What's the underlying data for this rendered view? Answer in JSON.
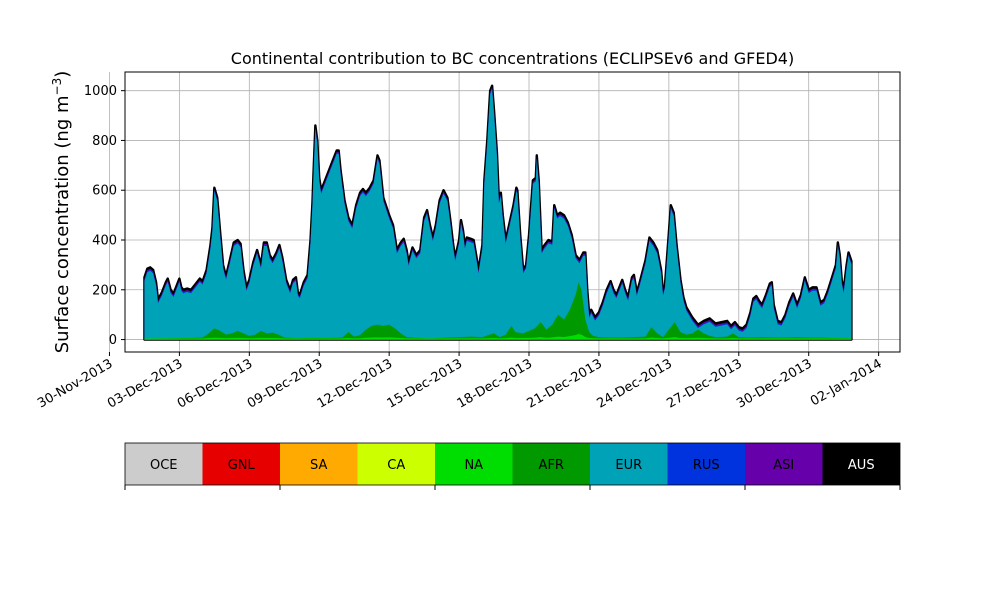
{
  "chart_data": {
    "type": "area",
    "stacked": true,
    "title": "Continental contribution to BC concentrations (ECLIPSEv6 and GFED4)",
    "ylabel": "Surface concentration (ng m",
    "ylabel_superscript": "−3",
    "ylabel_close": ")",
    "ylim": [
      -50,
      1075
    ],
    "xlim": [
      "2013-11-30T16:00",
      "2014-01-02T22:00"
    ],
    "y_ticks": [
      0,
      200,
      400,
      600,
      800,
      1000
    ],
    "x_ticks": [
      "2013-11-30",
      "2013-12-03",
      "2013-12-06",
      "2013-12-09",
      "2013-12-12",
      "2013-12-15",
      "2013-12-18",
      "2013-12-21",
      "2013-12-24",
      "2013-12-27",
      "2013-12-30",
      "2014-01-02"
    ],
    "x_tick_labels": [
      "30-Nov-2013",
      "03-Dec-2013",
      "06-Dec-2013",
      "09-Dec-2013",
      "12-Dec-2013",
      "15-Dec-2013",
      "18-Dec-2013",
      "21-Dec-2013",
      "24-Dec-2013",
      "27-Dec-2013",
      "30-Dec-2013",
      "02-Jan-2014"
    ],
    "grid": true,
    "series_order": [
      "OCE",
      "GNL",
      "SA",
      "CA",
      "NA",
      "AFR",
      "EUR",
      "RUS",
      "ASI",
      "AUS"
    ],
    "colors": {
      "OCE": "#cccccc",
      "GNL": "#e60000",
      "SA": "#ffaa00",
      "CA": "#ccff00",
      "NA": "#00dd00",
      "AFR": "#009900",
      "EUR": "#00a2b8",
      "RUS": "#0033dd",
      "ASI": "#6600aa",
      "AUS": "#000000"
    },
    "total_points": [
      [
        "2013-12-01T12:00",
        250
      ],
      [
        "2013-12-01T15:00",
        285
      ],
      [
        "2013-12-01T18:00",
        290
      ],
      [
        "2013-12-01T21:00",
        280
      ],
      [
        "2013-12-02T00:00",
        230
      ],
      [
        "2013-12-02T02:00",
        160
      ],
      [
        "2013-12-02T06:00",
        190
      ],
      [
        "2013-12-02T10:00",
        230
      ],
      [
        "2013-12-02T12:00",
        245
      ],
      [
        "2013-12-02T15:00",
        200
      ],
      [
        "2013-12-02T18:00",
        185
      ],
      [
        "2013-12-02T21:00",
        215
      ],
      [
        "2013-12-03T00:00",
        245
      ],
      [
        "2013-12-03T02:00",
        210
      ],
      [
        "2013-12-03T04:00",
        200
      ],
      [
        "2013-12-03T08:00",
        205
      ],
      [
        "2013-12-03T12:00",
        200
      ],
      [
        "2013-12-03T18:00",
        230
      ],
      [
        "2013-12-03T21:00",
        245
      ],
      [
        "2013-12-04T00:00",
        235
      ],
      [
        "2013-12-04T04:00",
        280
      ],
      [
        "2013-12-04T08:00",
        380
      ],
      [
        "2013-12-04T10:00",
        450
      ],
      [
        "2013-12-04T12:00",
        610
      ],
      [
        "2013-12-04T15:00",
        570
      ],
      [
        "2013-12-04T18:00",
        430
      ],
      [
        "2013-12-04T21:00",
        300
      ],
      [
        "2013-12-05T00:00",
        255
      ],
      [
        "2013-12-05T04:00",
        320
      ],
      [
        "2013-12-05T08:00",
        390
      ],
      [
        "2013-12-05T12:00",
        400
      ],
      [
        "2013-12-05T15:00",
        385
      ],
      [
        "2013-12-05T18:00",
        280
      ],
      [
        "2013-12-05T21:00",
        210
      ],
      [
        "2013-12-06T00:00",
        240
      ],
      [
        "2013-12-06T04:00",
        310
      ],
      [
        "2013-12-06T08:00",
        360
      ],
      [
        "2013-12-06T12:00",
        300
      ],
      [
        "2013-12-06T15:00",
        390
      ],
      [
        "2013-12-06T18:00",
        390
      ],
      [
        "2013-12-06T21:00",
        340
      ],
      [
        "2013-12-07T00:00",
        320
      ],
      [
        "2013-12-07T04:00",
        350
      ],
      [
        "2013-12-07T07:00",
        380
      ],
      [
        "2013-12-07T10:00",
        330
      ],
      [
        "2013-12-07T14:00",
        240
      ],
      [
        "2013-12-07T18:00",
        200
      ],
      [
        "2013-12-07T21:00",
        240
      ],
      [
        "2013-12-08T00:00",
        250
      ],
      [
        "2013-12-08T02:00",
        190
      ],
      [
        "2013-12-08T04:00",
        180
      ],
      [
        "2013-12-08T08:00",
        230
      ],
      [
        "2013-12-08T12:00",
        260
      ],
      [
        "2013-12-08T15:00",
        400
      ],
      [
        "2013-12-08T17:00",
        550
      ],
      [
        "2013-12-08T18:00",
        660
      ],
      [
        "2013-12-08T20:00",
        860
      ],
      [
        "2013-12-08T22:00",
        800
      ],
      [
        "2013-12-09T00:00",
        650
      ],
      [
        "2013-12-09T02:00",
        600
      ],
      [
        "2013-12-09T06:00",
        640
      ],
      [
        "2013-12-09T10:00",
        680
      ],
      [
        "2013-12-09T14:00",
        720
      ],
      [
        "2013-12-09T18:00",
        760
      ],
      [
        "2013-12-09T20:00",
        760
      ],
      [
        "2013-12-09T22:00",
        680
      ],
      [
        "2013-12-10T02:00",
        560
      ],
      [
        "2013-12-10T06:00",
        490
      ],
      [
        "2013-12-10T10:00",
        460
      ],
      [
        "2013-12-10T14:00",
        540
      ],
      [
        "2013-12-10T18:00",
        590
      ],
      [
        "2013-12-10T21:00",
        605
      ],
      [
        "2013-12-11T00:00",
        590
      ],
      [
        "2013-12-11T04:00",
        610
      ],
      [
        "2013-12-11T08:00",
        640
      ],
      [
        "2013-12-11T12:00",
        740
      ],
      [
        "2013-12-11T14:00",
        720
      ],
      [
        "2013-12-11T18:00",
        570
      ],
      [
        "2013-12-12T00:00",
        500
      ],
      [
        "2013-12-12T04:00",
        460
      ],
      [
        "2013-12-12T08:00",
        360
      ],
      [
        "2013-12-12T12:00",
        390
      ],
      [
        "2013-12-12T15:00",
        405
      ],
      [
        "2013-12-12T18:00",
        360
      ],
      [
        "2013-12-12T20:00",
        310
      ],
      [
        "2013-12-13T00:00",
        370
      ],
      [
        "2013-12-13T04:00",
        340
      ],
      [
        "2013-12-13T08:00",
        360
      ],
      [
        "2013-12-13T12:00",
        490
      ],
      [
        "2013-12-13T15:00",
        520
      ],
      [
        "2013-12-13T18:00",
        460
      ],
      [
        "2013-12-13T21:00",
        410
      ],
      [
        "2013-12-14T00:00",
        460
      ],
      [
        "2013-12-14T04:00",
        560
      ],
      [
        "2013-12-14T08:00",
        600
      ],
      [
        "2013-12-14T12:00",
        570
      ],
      [
        "2013-12-14T15:00",
        480
      ],
      [
        "2013-12-14T18:00",
        380
      ],
      [
        "2013-12-14T20:00",
        330
      ],
      [
        "2013-12-15T00:00",
        400
      ],
      [
        "2013-12-15T02:00",
        480
      ],
      [
        "2013-12-15T04:00",
        440
      ],
      [
        "2013-12-15T06:00",
        380
      ],
      [
        "2013-12-15T08:00",
        410
      ],
      [
        "2013-12-15T12:00",
        405
      ],
      [
        "2013-12-15T15:00",
        400
      ],
      [
        "2013-12-15T18:00",
        330
      ],
      [
        "2013-12-15T20:00",
        280
      ],
      [
        "2013-12-16T00:00",
        380
      ],
      [
        "2013-12-16T02:00",
        640
      ],
      [
        "2013-12-16T05:00",
        800
      ],
      [
        "2013-12-16T08:00",
        1000
      ],
      [
        "2013-12-16T10:00",
        1020
      ],
      [
        "2013-12-16T12:00",
        920
      ],
      [
        "2013-12-16T15:00",
        750
      ],
      [
        "2013-12-16T17:00",
        560
      ],
      [
        "2013-12-16T19:00",
        590
      ],
      [
        "2013-12-16T21:00",
        500
      ],
      [
        "2013-12-17T00:00",
        400
      ],
      [
        "2013-12-17T04:00",
        470
      ],
      [
        "2013-12-17T08:00",
        540
      ],
      [
        "2013-12-17T11:00",
        610
      ],
      [
        "2013-12-17T12:00",
        600
      ],
      [
        "2013-12-17T15:00",
        420
      ],
      [
        "2013-12-17T18:00",
        280
      ],
      [
        "2013-12-17T21:00",
        300
      ],
      [
        "2013-12-18T00:00",
        420
      ],
      [
        "2013-12-18T04:00",
        640
      ],
      [
        "2013-12-18T07:00",
        650
      ],
      [
        "2013-12-18T08:00",
        740
      ],
      [
        "2013-12-18T10:00",
        640
      ],
      [
        "2013-12-18T13:00",
        360
      ],
      [
        "2013-12-18T16:00",
        380
      ],
      [
        "2013-12-18T20:00",
        400
      ],
      [
        "2013-12-19T00:00",
        395
      ],
      [
        "2013-12-19T02:00",
        540
      ],
      [
        "2013-12-19T05:00",
        500
      ],
      [
        "2013-12-19T08:00",
        510
      ],
      [
        "2013-12-19T12:00",
        500
      ],
      [
        "2013-12-19T16:00",
        470
      ],
      [
        "2013-12-19T20:00",
        420
      ],
      [
        "2013-12-20T00:00",
        340
      ],
      [
        "2013-12-20T04:00",
        320
      ],
      [
        "2013-12-20T08:00",
        350
      ],
      [
        "2013-12-20T10:00",
        350
      ],
      [
        "2013-12-20T12:00",
        200
      ],
      [
        "2013-12-20T14:00",
        100
      ],
      [
        "2013-12-20T16:00",
        120
      ],
      [
        "2013-12-20T20:00",
        90
      ],
      [
        "2013-12-21T00:00",
        110
      ],
      [
        "2013-12-21T04:00",
        150
      ],
      [
        "2013-12-21T08:00",
        200
      ],
      [
        "2013-12-21T12:00",
        235
      ],
      [
        "2013-12-21T15:00",
        200
      ],
      [
        "2013-12-21T18:00",
        180
      ],
      [
        "2013-12-21T21:00",
        210
      ],
      [
        "2013-12-22T00:00",
        240
      ],
      [
        "2013-12-22T03:00",
        200
      ],
      [
        "2013-12-22T06:00",
        170
      ],
      [
        "2013-12-22T10:00",
        250
      ],
      [
        "2013-12-22T12:00",
        260
      ],
      [
        "2013-12-22T15:00",
        190
      ],
      [
        "2013-12-22T18:00",
        230
      ],
      [
        "2013-12-23T00:00",
        320
      ],
      [
        "2013-12-23T04:00",
        410
      ],
      [
        "2013-12-23T08:00",
        390
      ],
      [
        "2013-12-23T12:00",
        360
      ],
      [
        "2013-12-23T16:00",
        280
      ],
      [
        "2013-12-23T18:00",
        190
      ],
      [
        "2013-12-23T20:00",
        220
      ],
      [
        "2013-12-24T00:00",
        430
      ],
      [
        "2013-12-24T02:00",
        540
      ],
      [
        "2013-12-24T05:00",
        510
      ],
      [
        "2013-12-24T08:00",
        380
      ],
      [
        "2013-12-24T12:00",
        240
      ],
      [
        "2013-12-24T15:00",
        170
      ],
      [
        "2013-12-24T18:00",
        130
      ],
      [
        "2013-12-25T00:00",
        90
      ],
      [
        "2013-12-25T06:00",
        60
      ],
      [
        "2013-12-25T12:00",
        75
      ],
      [
        "2013-12-25T18:00",
        85
      ],
      [
        "2013-12-26T00:00",
        65
      ],
      [
        "2013-12-26T06:00",
        70
      ],
      [
        "2013-12-26T12:00",
        75
      ],
      [
        "2013-12-26T16:00",
        55
      ],
      [
        "2013-12-26T20:00",
        70
      ],
      [
        "2013-12-27T00:00",
        50
      ],
      [
        "2013-12-27T04:00",
        45
      ],
      [
        "2013-12-27T08:00",
        60
      ],
      [
        "2013-12-27T12:00",
        110
      ],
      [
        "2013-12-27T15:00",
        165
      ],
      [
        "2013-12-27T18:00",
        175
      ],
      [
        "2013-12-27T21:00",
        155
      ],
      [
        "2013-12-28T00:00",
        140
      ],
      [
        "2013-12-28T04:00",
        180
      ],
      [
        "2013-12-28T08:00",
        225
      ],
      [
        "2013-12-28T10:00",
        230
      ],
      [
        "2013-12-28T12:00",
        140
      ],
      [
        "2013-12-28T16:00",
        75
      ],
      [
        "2013-12-28T20:00",
        70
      ],
      [
        "2013-12-29T00:00",
        100
      ],
      [
        "2013-12-29T04:00",
        150
      ],
      [
        "2013-12-29T08:00",
        185
      ],
      [
        "2013-12-29T12:00",
        140
      ],
      [
        "2013-12-29T16:00",
        180
      ],
      [
        "2013-12-29T20:00",
        250
      ],
      [
        "2013-12-30T00:00",
        200
      ],
      [
        "2013-12-30T04:00",
        210
      ],
      [
        "2013-12-30T08:00",
        210
      ],
      [
        "2013-12-30T12:00",
        150
      ],
      [
        "2013-12-30T16:00",
        160
      ],
      [
        "2013-12-30T20:00",
        200
      ],
      [
        "2013-12-31T00:00",
        250
      ],
      [
        "2013-12-31T04:00",
        300
      ],
      [
        "2013-12-31T06:00",
        390
      ],
      [
        "2013-12-31T08:00",
        340
      ],
      [
        "2013-12-31T10:00",
        240
      ],
      [
        "2013-12-31T12:00",
        200
      ],
      [
        "2013-12-31T15:00",
        300
      ],
      [
        "2013-12-31T17:00",
        350
      ],
      [
        "2013-12-31T20:00",
        315
      ]
    ],
    "non_eur_points": [
      [
        "2013-12-01T12:00",
        4
      ],
      [
        "2013-12-02T12:00",
        5
      ],
      [
        "2013-12-03T12:00",
        6
      ],
      [
        "2013-12-04T00:00",
        8
      ],
      [
        "2013-12-04T06:00",
        25
      ],
      [
        "2013-12-04T12:00",
        45
      ],
      [
        "2013-12-04T18:00",
        35
      ],
      [
        "2013-12-05T00:00",
        20
      ],
      [
        "2013-12-05T06:00",
        25
      ],
      [
        "2013-12-05T12:00",
        35
      ],
      [
        "2013-12-05T18:00",
        25
      ],
      [
        "2013-12-06T00:00",
        15
      ],
      [
        "2013-12-06T06:00",
        20
      ],
      [
        "2013-12-06T12:00",
        35
      ],
      [
        "2013-12-06T18:00",
        25
      ],
      [
        "2013-12-07T00:00",
        28
      ],
      [
        "2013-12-07T06:00",
        20
      ],
      [
        "2013-12-07T12:00",
        8
      ],
      [
        "2013-12-08T00:00",
        5
      ],
      [
        "2013-12-08T12:00",
        6
      ],
      [
        "2013-12-09T00:00",
        6
      ],
      [
        "2013-12-09T12:00",
        6
      ],
      [
        "2013-12-10T00:00",
        8
      ],
      [
        "2013-12-10T06:00",
        30
      ],
      [
        "2013-12-10T12:00",
        12
      ],
      [
        "2013-12-10T18:00",
        18
      ],
      [
        "2013-12-11T00:00",
        40
      ],
      [
        "2013-12-11T06:00",
        55
      ],
      [
        "2013-12-11T12:00",
        60
      ],
      [
        "2013-12-11T18:00",
        55
      ],
      [
        "2013-12-12T00:00",
        60
      ],
      [
        "2013-12-12T06:00",
        45
      ],
      [
        "2013-12-12T12:00",
        25
      ],
      [
        "2013-12-12T18:00",
        10
      ],
      [
        "2013-12-13T00:00",
        8
      ],
      [
        "2013-12-13T12:00",
        5
      ],
      [
        "2013-12-14T00:00",
        5
      ],
      [
        "2013-12-14T12:00",
        8
      ],
      [
        "2013-12-15T00:00",
        10
      ],
      [
        "2013-12-15T12:00",
        12
      ],
      [
        "2013-12-16T00:00",
        10
      ],
      [
        "2013-12-16T06:00",
        18
      ],
      [
        "2013-12-16T12:00",
        25
      ],
      [
        "2013-12-16T18:00",
        10
      ],
      [
        "2013-12-17T00:00",
        20
      ],
      [
        "2013-12-17T06:00",
        55
      ],
      [
        "2013-12-17T10:00",
        30
      ],
      [
        "2013-12-17T18:00",
        25
      ],
      [
        "2013-12-18T00:00",
        35
      ],
      [
        "2013-12-18T06:00",
        45
      ],
      [
        "2013-12-18T12:00",
        70
      ],
      [
        "2013-12-18T18:00",
        40
      ],
      [
        "2013-12-19T00:00",
        60
      ],
      [
        "2013-12-19T06:00",
        100
      ],
      [
        "2013-12-19T12:00",
        80
      ],
      [
        "2013-12-19T18:00",
        120
      ],
      [
        "2013-12-20T00:00",
        180
      ],
      [
        "2013-12-20T03:00",
        230
      ],
      [
        "2013-12-20T06:00",
        200
      ],
      [
        "2013-12-20T10:00",
        80
      ],
      [
        "2013-12-20T14:00",
        30
      ],
      [
        "2013-12-20T18:00",
        15
      ],
      [
        "2013-12-21T00:00",
        10
      ],
      [
        "2013-12-21T12:00",
        8
      ],
      [
        "2013-12-22T00:00",
        8
      ],
      [
        "2013-12-22T12:00",
        10
      ],
      [
        "2013-12-23T00:00",
        12
      ],
      [
        "2013-12-23T06:00",
        50
      ],
      [
        "2013-12-23T12:00",
        25
      ],
      [
        "2013-12-23T18:00",
        10
      ],
      [
        "2013-12-24T00:00",
        40
      ],
      [
        "2013-12-24T06:00",
        70
      ],
      [
        "2013-12-24T12:00",
        30
      ],
      [
        "2013-12-24T18:00",
        20
      ],
      [
        "2013-12-25T00:00",
        25
      ],
      [
        "2013-12-25T06:00",
        40
      ],
      [
        "2013-12-25T12:00",
        25
      ],
      [
        "2013-12-25T18:00",
        15
      ],
      [
        "2013-12-26T00:00",
        10
      ],
      [
        "2013-12-26T12:00",
        12
      ],
      [
        "2013-12-26T18:00",
        25
      ],
      [
        "2013-12-27T00:00",
        10
      ],
      [
        "2013-12-27T12:00",
        8
      ],
      [
        "2013-12-28T00:00",
        10
      ],
      [
        "2013-12-28T12:00",
        8
      ],
      [
        "2013-12-29T00:00",
        8
      ],
      [
        "2013-12-29T12:00",
        10
      ],
      [
        "2013-12-30T00:00",
        8
      ],
      [
        "2013-12-30T12:00",
        8
      ],
      [
        "2013-12-31T00:00",
        6
      ],
      [
        "2013-12-31T20:00",
        5
      ]
    ]
  }
}
